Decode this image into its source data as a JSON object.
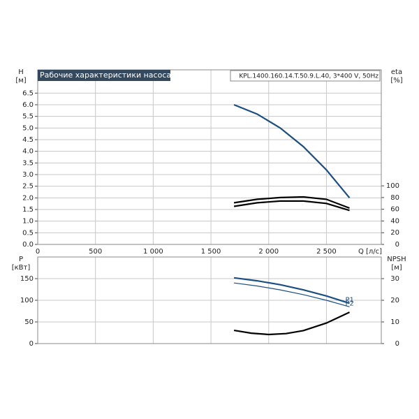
{
  "chart_data": [
    {
      "type": "line",
      "title": "Рабочие характеристики насоса",
      "subtitle": "KPL.1400.160.14.T.50.9.L.40, 3*400 V, 50Hz",
      "xlabel": "Q [л/с]",
      "ylabel": "H",
      "yunit": "[м]",
      "y2label": "eta",
      "y2unit": "[%]",
      "xlim": [
        0,
        2975
      ],
      "xticks": [
        0,
        500,
        {
          "value": 1000,
          "label": "1 000"
        },
        {
          "value": 1500,
          "label": "1 500"
        },
        {
          "value": 2000,
          "label": "2 000"
        },
        {
          "value": 2500,
          "label": "2 500"
        }
      ],
      "ylim": [
        0,
        7.5
      ],
      "yticks": [
        {
          "value": 0,
          "label": "0.0"
        },
        0.5,
        {
          "value": 1,
          "label": "1.0"
        },
        1.5,
        {
          "value": 2,
          "label": "2.0"
        },
        2.5,
        {
          "value": 3,
          "label": "3.0"
        },
        3.5,
        {
          "value": 4,
          "label": "4.0"
        },
        4.5,
        {
          "value": 5,
          "label": "5.0"
        },
        5.5,
        {
          "value": 6,
          "label": "6.0"
        },
        6.5
      ],
      "y2lim": [
        0,
        298
      ],
      "y2ticks": [
        0,
        20,
        40,
        60,
        80,
        100
      ],
      "grid": true,
      "series": [
        {
          "color": "#1b4f82",
          "x": [
            1700,
            1900,
            2100,
            2300,
            2500,
            2700
          ],
          "values": [
            6.0,
            5.6,
            5.0,
            4.2,
            3.2,
            2.0
          ]
        },
        {
          "color": "#000000",
          "axis": "y2",
          "x": [
            1700,
            1900,
            2100,
            2300,
            2500,
            2700
          ],
          "values": [
            71,
            77,
            80,
            81,
            77,
            62
          ]
        },
        {
          "color": "#000000",
          "axis": "y2",
          "x": [
            1700,
            1900,
            2100,
            2300,
            2500,
            2700
          ],
          "values": [
            65,
            71,
            74,
            74,
            70,
            58
          ]
        }
      ]
    },
    {
      "type": "line",
      "ylabel": "P",
      "yunit": "[кВт]",
      "y2label": "NPSH",
      "y2unit": "[м]",
      "xlim": [
        0,
        2975
      ],
      "ylim": [
        0,
        200
      ],
      "yticks": [
        0,
        50,
        100,
        150
      ],
      "y2lim": [
        0,
        40
      ],
      "y2ticks": [
        0,
        10,
        20,
        30
      ],
      "grid": true,
      "series": [
        {
          "name": "P1",
          "color": "#1b4f82",
          "x": [
            1700,
            1900,
            2100,
            2300,
            2500,
            2700
          ],
          "values": [
            152,
            145,
            136,
            124,
            110,
            93
          ]
        },
        {
          "name": "P2",
          "color": "#1b4f82",
          "x": [
            1700,
            1900,
            2100,
            2300,
            2500,
            2700
          ],
          "values": [
            140,
            133,
            124,
            113,
            100,
            85
          ]
        },
        {
          "color": "#000000",
          "axis": "y2",
          "x": [
            1700,
            1850,
            2000,
            2150,
            2300,
            2500,
            2700
          ],
          "values": [
            6.1,
            4.8,
            4.2,
            4.6,
            6.0,
            9.5,
            14.5
          ]
        }
      ]
    }
  ]
}
